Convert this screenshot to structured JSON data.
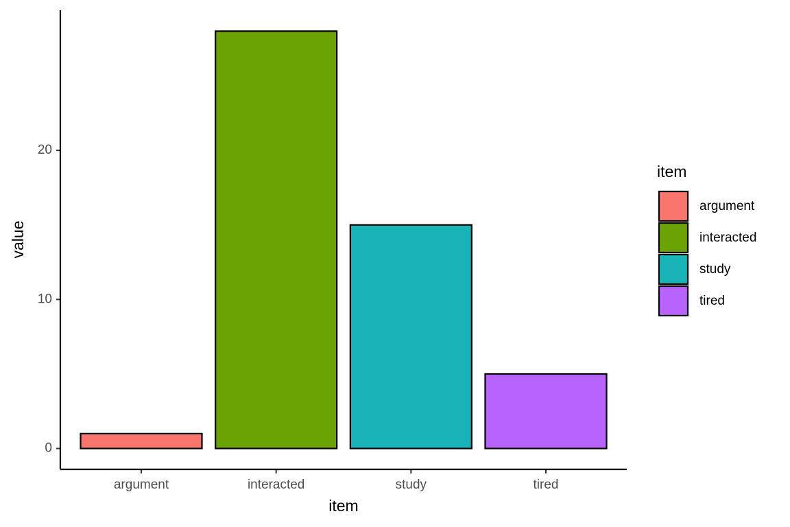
{
  "chart_data": {
    "type": "bar",
    "x_label": "item",
    "y_label": "value",
    "legend_title": "item",
    "categories": [
      "argument",
      "interacted",
      "study",
      "tired"
    ],
    "values": [
      1,
      28,
      15,
      5
    ],
    "colors": [
      "#f8766d",
      "#6ba304",
      "#19b4b8",
      "#b863fd"
    ],
    "ylim": [
      -1.4,
      29.4
    ],
    "yticks": [
      0,
      10,
      20
    ],
    "grid": false
  }
}
